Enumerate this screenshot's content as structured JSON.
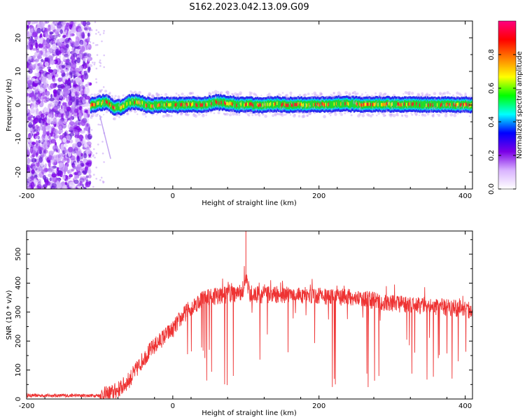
{
  "title": "S162.2023.042.13.09.G09",
  "chart_data": [
    {
      "type": "heatmap",
      "title": "S162.2023.042.13.09.G09",
      "xlabel": "Height of straight line (km)",
      "ylabel": "Frequency (Hz)",
      "xlim": [
        -200,
        410
      ],
      "ylim": [
        -25,
        25
      ],
      "x_ticks": [
        -200,
        0,
        200,
        400
      ],
      "y_ticks": [
        -20,
        -10,
        0,
        10,
        20
      ],
      "colorbar": {
        "label": "Normalized spectral amplitude",
        "ticks": [
          0.0,
          0.2,
          0.4,
          0.6,
          0.8
        ],
        "range": [
          0,
          1
        ],
        "colormap": [
          "#ffffff",
          "#d9b3ff",
          "#7b00e6",
          "#0000ff",
          "#00ffff",
          "#00ff00",
          "#ffff00",
          "#ff8000",
          "#ff0000",
          "#ff0080"
        ]
      },
      "noise_region_x": [
        -200,
        -113
      ],
      "signal_track": {
        "x": [
          -112,
          -100,
          -90,
          -80,
          -70,
          -60,
          -50,
          -40,
          -30,
          -20,
          -10,
          0,
          10,
          20,
          30,
          40,
          50,
          60,
          70,
          80,
          90,
          100,
          120,
          140,
          160,
          180,
          200,
          220,
          240,
          260,
          280,
          300,
          320,
          340,
          360,
          380,
          400,
          410
        ],
        "y": [
          0,
          0.5,
          1,
          -0.8,
          -0.6,
          0.8,
          1,
          0.3,
          -0.2,
          0,
          0,
          0,
          0,
          0.2,
          0.1,
          0,
          0.5,
          0.8,
          0.7,
          0.4,
          0,
          0.2,
          -0.1,
          0.3,
          0,
          0.2,
          0.1,
          0.3,
          0.4,
          0.1,
          0.3,
          0.2,
          0.1,
          0.2,
          0,
          0.2,
          0.1,
          0
        ]
      },
      "spurious_streak": {
        "x": [
          -100,
          -85
        ],
        "y": [
          -3,
          -16
        ]
      },
      "grid": false
    },
    {
      "type": "line",
      "xlabel": "Height of straight line (km)",
      "ylabel": "SNR (10 * v/v)",
      "xlim": [
        -200,
        410
      ],
      "ylim": [
        0,
        580
      ],
      "x_ticks": [
        -200,
        0,
        200,
        400
      ],
      "y_ticks": [
        0,
        100,
        200,
        300,
        400,
        500
      ],
      "color": "#ee3333",
      "grid": false,
      "envelope": {
        "x": [
          -200,
          -120,
          -100,
          -90,
          -80,
          -70,
          -60,
          -50,
          -40,
          -30,
          -20,
          -10,
          0,
          10,
          20,
          30,
          40,
          60,
          80,
          95,
          100,
          105,
          120,
          150,
          200,
          250,
          300,
          350,
          400,
          410
        ],
        "y": [
          12,
          12,
          12,
          15,
          25,
          40,
          65,
          100,
          140,
          170,
          195,
          220,
          240,
          275,
          305,
          325,
          345,
          355,
          360,
          370,
          420,
          365,
          360,
          360,
          355,
          350,
          330,
          320,
          310,
          305
        ]
      },
      "noise_amplitude": 30,
      "spike": {
        "x": 100,
        "y": 580
      },
      "dropout_min": 100
    }
  ]
}
